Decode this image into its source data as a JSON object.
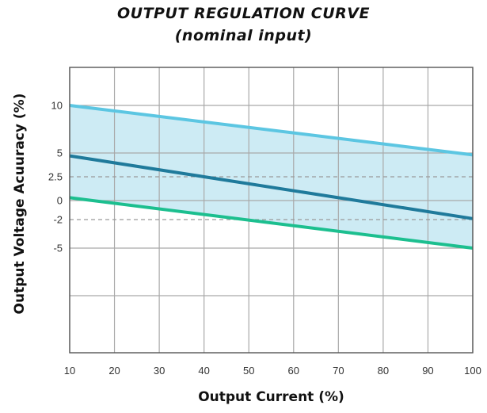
{
  "chart_data": {
    "type": "line",
    "title": "OUTPUT REGULATION CURVE",
    "subtitle": "(nominal input)",
    "xlabel": "Output Current (%)",
    "ylabel": "Output Voltage Acuuracy (%)",
    "xlim": [
      10,
      100
    ],
    "ylim": [
      -16,
      14
    ],
    "x_ticks": [
      10,
      20,
      30,
      40,
      50,
      60,
      70,
      80,
      90,
      100
    ],
    "y_ticks": [
      {
        "value": 10,
        "label": "10"
      },
      {
        "value": 5,
        "label": "5"
      },
      {
        "value": 2.5,
        "label": "2.5"
      },
      {
        "value": 0,
        "label": "0"
      },
      {
        "value": -2,
        "label": "-2"
      },
      {
        "value": -5,
        "label": "-5"
      }
    ],
    "grid": true,
    "reference_lines": [
      2.5,
      -2
    ],
    "band": {
      "upper": [
        10,
        4.8
      ],
      "lower": [
        0.3,
        -5
      ],
      "x": [
        10,
        100
      ],
      "color": "#cdebf4"
    },
    "series": [
      {
        "x": [
          10,
          100
        ],
        "values": [
          10,
          4.8
        ],
        "color": "#5cc6e2"
      },
      {
        "x": [
          10,
          100
        ],
        "values": [
          4.7,
          -1.9
        ],
        "color": "#1f7a9b"
      },
      {
        "x": [
          10,
          100
        ],
        "values": [
          0.3,
          -5
        ],
        "color": "#1cbf8f"
      }
    ]
  }
}
